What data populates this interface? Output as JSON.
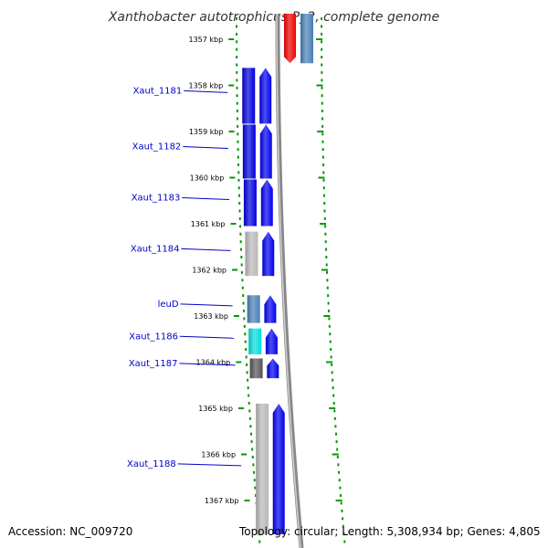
{
  "title": "Xanthobacter autotrophicus Py2, complete genome",
  "accession": "Accession: NC_009720",
  "topology": "Topology: circular; Length: 5,308,934 bp; Genes: 4,805",
  "axis": {
    "unit": "kbp",
    "start_kbp": 1357,
    "end_kbp": 1367,
    "ticks": [
      {
        "kbp": 1357,
        "label": "1357 kbp"
      },
      {
        "kbp": 1358,
        "label": "1358 kbp"
      },
      {
        "kbp": 1359,
        "label": "1359 kbp"
      },
      {
        "kbp": 1360,
        "label": "1360 kbp"
      },
      {
        "kbp": 1361,
        "label": "1361 kbp"
      },
      {
        "kbp": 1362,
        "label": "1362 kbp"
      },
      {
        "kbp": 1363,
        "label": "1363 kbp"
      },
      {
        "kbp": 1364,
        "label": "1364 kbp"
      },
      {
        "kbp": 1365,
        "label": "1365 kbp"
      },
      {
        "kbp": 1366,
        "label": "1366 kbp"
      },
      {
        "kbp": 1367,
        "label": "1367 kbp"
      }
    ]
  },
  "genes": [
    {
      "name": "Xaut_1181",
      "start_kbp": 1357.62,
      "end_kbp": 1358.85,
      "strand": "+",
      "arrow_color": "#0000ee",
      "bar_color": "#0000dd"
    },
    {
      "name": "Xaut_1182",
      "start_kbp": 1358.85,
      "end_kbp": 1360.04,
      "strand": "+",
      "arrow_color": "#0000ee",
      "bar_color": "#0000dd"
    },
    {
      "name": "Xaut_1183",
      "start_kbp": 1360.04,
      "end_kbp": 1361.07,
      "strand": "+",
      "arrow_color": "#0000ee",
      "bar_color": "#0000dd"
    },
    {
      "name": "Xaut_1184",
      "start_kbp": 1361.17,
      "end_kbp": 1362.15,
      "strand": "+",
      "arrow_color": "#0000ee",
      "bar_color": "#b8b8b8"
    },
    {
      "name": "leuD",
      "start_kbp": 1362.55,
      "end_kbp": 1363.17,
      "strand": "+",
      "arrow_color": "#0000ee",
      "bar_color": "#4a7fb5"
    },
    {
      "name": "Xaut_1186",
      "start_kbp": 1363.27,
      "end_kbp": 1363.85,
      "strand": "+",
      "arrow_color": "#0000ee",
      "bar_color": "#00dddd"
    },
    {
      "name": "Xaut_1187",
      "start_kbp": 1363.92,
      "end_kbp": 1364.37,
      "strand": "+",
      "arrow_color": "#0000ee",
      "bar_color": "#555555"
    },
    {
      "name": "Xaut_1188",
      "start_kbp": 1364.9,
      "end_kbp": 1367.75,
      "strand": "+",
      "arrow_color": "#0000ee",
      "bar_color": "#b8b8b8"
    }
  ],
  "partial_features": [
    {
      "name": "upstream-feature-red",
      "end_kbp": 1357.52,
      "color": "#ee0000"
    },
    {
      "name": "upstream-feature-steelblue",
      "end_kbp": 1357.52,
      "color": "#4a7fb5"
    }
  ],
  "colors": {
    "backbone": "#888888",
    "tick_dots": "#009900",
    "label": "#0000cc"
  }
}
